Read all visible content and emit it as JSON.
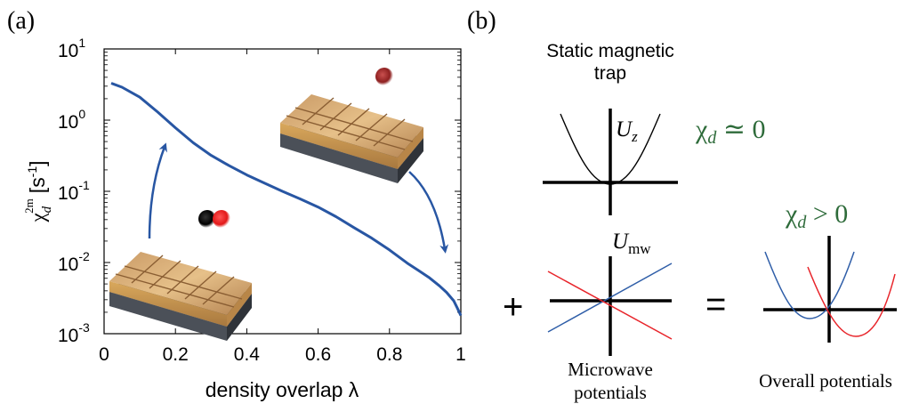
{
  "panel_a": {
    "label": "(a)",
    "ylabel_main": "χ",
    "ylabel_sub": "d",
    "ylabel_sup": "2m",
    "ylabel_unit": "[s",
    "ylabel_unit_sup": "-1",
    "ylabel_unit_close": "]",
    "xlabel": "density overlap λ"
  },
  "panel_b": {
    "label": "(b)",
    "static_title_line1": "Static magnetic",
    "static_title_line2": "trap",
    "uz_main": "U",
    "uz_sub": "z",
    "umw_main": "U",
    "umw_sub": "mw",
    "chi_static_main": "χ",
    "chi_static_sub": "d",
    "chi_static_rel": " ≃ 0",
    "chi_overall_main": "χ",
    "chi_overall_sub": "d",
    "chi_overall_rel": " > 0",
    "plus_sign": "+",
    "equals_sign": "=",
    "microwave_line1": "Microwave",
    "microwave_line2": "potentials",
    "overall_caption": "Overall potentials",
    "colors": {
      "red": "#e8242a",
      "blue": "#2f5ea8",
      "green": "#2e6b3a",
      "black": "#000000"
    }
  },
  "chart_data": {
    "type": "line",
    "xlabel": "density overlap λ",
    "ylabel": "χd2m [s-1]",
    "xlim": [
      0,
      1
    ],
    "ylim": [
      0.001,
      10
    ],
    "yscale": "log",
    "x_ticks": [
      "0",
      "0.2",
      "0.4",
      "0.6",
      "0.8",
      "1"
    ],
    "y_tick_bases": [
      "10",
      "10",
      "10",
      "10",
      "10"
    ],
    "y_tick_exps": [
      "-3",
      "-2",
      "-1",
      "0",
      "1"
    ],
    "series": [
      {
        "color": "#2856a3",
        "x": [
          0.02,
          0.05,
          0.1,
          0.15,
          0.2,
          0.25,
          0.3,
          0.35,
          0.4,
          0.45,
          0.5,
          0.55,
          0.6,
          0.65,
          0.7,
          0.75,
          0.8,
          0.85,
          0.88,
          0.91,
          0.94,
          0.96,
          0.98,
          0.99,
          1.0
        ],
        "y": [
          3.3,
          2.9,
          2.1,
          1.3,
          0.78,
          0.48,
          0.32,
          0.23,
          0.17,
          0.13,
          0.1,
          0.078,
          0.06,
          0.044,
          0.031,
          0.022,
          0.015,
          0.0098,
          0.0078,
          0.0062,
          0.0047,
          0.0038,
          0.0029,
          0.0023,
          0.0018
        ]
      }
    ]
  }
}
